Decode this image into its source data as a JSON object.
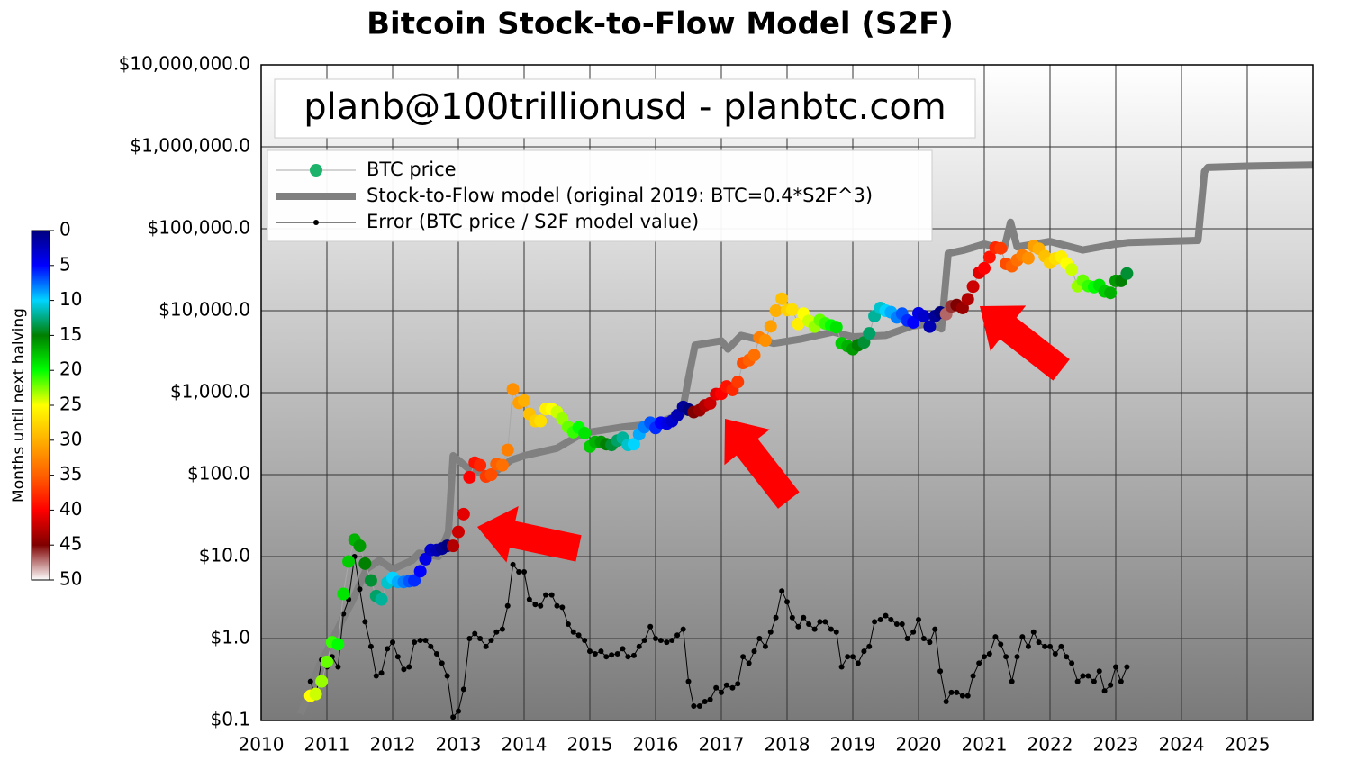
{
  "chart_data": {
    "type": "line",
    "title": "Bitcoin Stock-to-Flow Model (S2F)",
    "annotation": "planb@100trillionusd  -  planbtc.com",
    "ylog": true,
    "grid": true,
    "legend": "upper left",
    "xlim": [
      2010,
      2026
    ],
    "xticks": [
      2010,
      2011,
      2012,
      2013,
      2014,
      2015,
      2016,
      2017,
      2018,
      2019,
      2020,
      2021,
      2022,
      2023,
      2024,
      2025
    ],
    "ylim": [
      0.1,
      10000000
    ],
    "yticks": [
      {
        "value": 0.1,
        "label": "$0.1"
      },
      {
        "value": 1,
        "label": "$1.0"
      },
      {
        "value": 10,
        "label": "$10.0"
      },
      {
        "value": 100,
        "label": "$100.0"
      },
      {
        "value": 1000,
        "label": "$1,000.0"
      },
      {
        "value": 10000,
        "label": "$10,000.0"
      },
      {
        "value": 100000,
        "label": "$100,000.0"
      },
      {
        "value": 1000000,
        "label": "$1,000,000.0"
      },
      {
        "value": 10000000,
        "label": "$10,000,000.0"
      }
    ],
    "colorbar": {
      "label": "Months until next halving",
      "clim": [
        0,
        50
      ],
      "ticks": [
        0,
        5,
        10,
        15,
        20,
        25,
        30,
        35,
        40,
        45,
        50
      ],
      "stops": [
        {
          "value": 0,
          "color": "#00007f"
        },
        {
          "value": 5,
          "color": "#0000ff"
        },
        {
          "value": 10,
          "color": "#00d4ff"
        },
        {
          "value": 15,
          "color": "#007f00"
        },
        {
          "value": 20,
          "color": "#00ff00"
        },
        {
          "value": 25,
          "color": "#ffff00"
        },
        {
          "value": 30,
          "color": "#ffb000"
        },
        {
          "value": 35,
          "color": "#ff6000"
        },
        {
          "value": 40,
          "color": "#ff0000"
        },
        {
          "value": 45,
          "color": "#7f0000"
        },
        {
          "value": 50,
          "color": "#ffffff"
        }
      ]
    },
    "x": [
      2010.75,
      2010.83,
      2010.92,
      2011.0,
      2011.08,
      2011.17,
      2011.25,
      2011.33,
      2011.42,
      2011.5,
      2011.58,
      2011.67,
      2011.75,
      2011.83,
      2011.92,
      2012.0,
      2012.08,
      2012.17,
      2012.25,
      2012.33,
      2012.42,
      2012.5,
      2012.58,
      2012.67,
      2012.75,
      2012.83,
      2012.92,
      2013.0,
      2013.08,
      2013.17,
      2013.25,
      2013.33,
      2013.42,
      2013.5,
      2013.58,
      2013.67,
      2013.75,
      2013.83,
      2013.92,
      2014.0,
      2014.08,
      2014.17,
      2014.25,
      2014.33,
      2014.42,
      2014.5,
      2014.58,
      2014.67,
      2014.75,
      2014.83,
      2014.92,
      2015.0,
      2015.08,
      2015.17,
      2015.25,
      2015.33,
      2015.42,
      2015.5,
      2015.58,
      2015.67,
      2015.75,
      2015.83,
      2015.92,
      2016.0,
      2016.08,
      2016.17,
      2016.25,
      2016.33,
      2016.42,
      2016.5,
      2016.58,
      2016.67,
      2016.75,
      2016.83,
      2016.92,
      2017.0,
      2017.08,
      2017.17,
      2017.25,
      2017.33,
      2017.42,
      2017.5,
      2017.58,
      2017.67,
      2017.75,
      2017.83,
      2017.92,
      2018.0,
      2018.08,
      2018.17,
      2018.25,
      2018.33,
      2018.42,
      2018.5,
      2018.58,
      2018.67,
      2018.75,
      2018.83,
      2018.92,
      2019.0,
      2019.08,
      2019.17,
      2019.25,
      2019.33,
      2019.42,
      2019.5,
      2019.58,
      2019.67,
      2019.75,
      2019.83,
      2019.92,
      2020.0,
      2020.08,
      2020.17,
      2020.25,
      2020.33,
      2020.42,
      2020.5,
      2020.58,
      2020.67,
      2020.75,
      2020.83,
      2020.92,
      2021.0,
      2021.08,
      2021.17,
      2021.25,
      2021.33,
      2021.42,
      2021.5,
      2021.58,
      2021.67,
      2021.75,
      2021.83,
      2021.92,
      2022.0,
      2022.08,
      2022.17,
      2022.25,
      2022.33,
      2022.42,
      2022.5,
      2022.58,
      2022.67,
      2022.75,
      2022.83,
      2022.92,
      2023.0,
      2023.08,
      2023.17
    ],
    "series": [
      {
        "name": "BTC price",
        "color": "#1db36b",
        "line_color": "#a8a8a8",
        "values": [
          0.2,
          0.21,
          0.3,
          0.52,
          0.9,
          0.85,
          3.5,
          8.7,
          16,
          13.5,
          8.2,
          5.1,
          3.3,
          3.0,
          4.8,
          5.5,
          4.9,
          4.9,
          5.0,
          5.1,
          6.6,
          9.3,
          12,
          12,
          12.5,
          13.5,
          13.5,
          20,
          33,
          93,
          140,
          130,
          95,
          100,
          135,
          130,
          200,
          1100,
          750,
          800,
          550,
          450,
          450,
          630,
          630,
          580,
          480,
          380,
          330,
          375,
          320,
          220,
          250,
          250,
          235,
          230,
          260,
          280,
          230,
          235,
          310,
          380,
          430,
          370,
          430,
          420,
          450,
          530,
          670,
          620,
          580,
          610,
          700,
          740,
          960,
          970,
          1190,
          1080,
          1350,
          2300,
          2500,
          2870,
          4700,
          4340,
          6450,
          10000,
          14000,
          10200,
          10300,
          6900,
          9200,
          7500,
          6400,
          7700,
          7000,
          6600,
          6300,
          4000,
          3700,
          3400,
          3800,
          4100,
          5300,
          8600,
          10800,
          10000,
          9600,
          8300,
          9200,
          7600,
          7200,
          9300,
          8600,
          6400,
          8600,
          9500,
          9100,
          11300,
          11700,
          10800,
          13800,
          19700,
          29000,
          33000,
          45000,
          58800,
          57700,
          37300,
          35000,
          41500,
          47100,
          43800,
          61300,
          57000,
          46300,
          38500,
          43200,
          45500,
          37700,
          31800,
          19900,
          23300,
          20000,
          19400,
          20500,
          17200,
          16500,
          23100,
          23100,
          28400
        ],
        "months": [
          25,
          24,
          23,
          22,
          21,
          20,
          19,
          18,
          17,
          16,
          15,
          14,
          13,
          12,
          11,
          10,
          9,
          8,
          7,
          6,
          5,
          4,
          3,
          2,
          1,
          0,
          43,
          42,
          41,
          40,
          39,
          38,
          37,
          36,
          35,
          34,
          33,
          32,
          31,
          30,
          29,
          28,
          27,
          26,
          25,
          24,
          23,
          22,
          21,
          20,
          19,
          18,
          17,
          16,
          15,
          14,
          13,
          12,
          11,
          10,
          9,
          8,
          7,
          6,
          5,
          4,
          3,
          2,
          1,
          0,
          45,
          44,
          43,
          42,
          41,
          40,
          39,
          38,
          37,
          36,
          35,
          34,
          33,
          32,
          31,
          30,
          29,
          28,
          27,
          26,
          25,
          24,
          23,
          22,
          21,
          20,
          19,
          18,
          17,
          16,
          15,
          14,
          13,
          12,
          11,
          10,
          9,
          8,
          7,
          6,
          5,
          4,
          3,
          2,
          1,
          0,
          47,
          46,
          45,
          44,
          43,
          42,
          41,
          40,
          39,
          38,
          37,
          36,
          35,
          34,
          33,
          32,
          31,
          30,
          29,
          28,
          27,
          26,
          25,
          24,
          23,
          22,
          21,
          20,
          19,
          18,
          17,
          16,
          15,
          14
        ]
      },
      {
        "name": "Stock-to-Flow model (original 2019:  BTC=0.4*S2F^3)",
        "color": "#808080",
        "x": [
          2010.6,
          2010.9,
          2011.0,
          2011.2,
          2011.4,
          2011.6,
          2011.8,
          2012.0,
          2012.3,
          2012.4,
          2012.7,
          2012.85,
          2012.92,
          2013.2,
          2013.5,
          2013.8,
          2014.0,
          2014.5,
          2014.8,
          2015.0,
          2015.5,
          2016.0,
          2016.4,
          2016.5,
          2016.6,
          2017.0,
          2017.1,
          2017.3,
          2017.8,
          2018.2,
          2018.7,
          2019.0,
          2019.5,
          2019.9,
          2020.2,
          2020.35,
          2020.45,
          2020.7,
          2021.0,
          2021.3,
          2021.4,
          2021.5,
          2022.0,
          2022.5,
          2023.0,
          2023.2,
          2024.25,
          2024.35,
          2024.4,
          2025.0,
          2026.0
        ],
        "values": [
          0.12,
          0.5,
          0.7,
          1.5,
          3,
          7,
          9,
          7,
          9,
          11,
          10,
          20,
          170,
          110,
          100,
          150,
          170,
          210,
          290,
          330,
          380,
          420,
          550,
          1500,
          3800,
          4300,
          3400,
          5000,
          4000,
          4500,
          5500,
          4800,
          5000,
          6500,
          7000,
          6000,
          50000,
          55000,
          65000,
          56000,
          120000,
          60000,
          70000,
          55000,
          65000,
          68000,
          72000,
          500000,
          560000,
          580000,
          600000
        ]
      },
      {
        "name": "Error (BTC price / S2F model value)",
        "color": "#000000",
        "values": [
          0.3,
          0.19,
          0.55,
          0.45,
          0.6,
          0.45,
          2.0,
          3.0,
          10,
          4.0,
          1.6,
          0.8,
          0.35,
          0.38,
          0.75,
          0.9,
          0.6,
          0.42,
          0.45,
          0.9,
          0.95,
          0.95,
          0.8,
          0.65,
          0.5,
          0.35,
          0.11,
          0.13,
          0.24,
          1.0,
          1.15,
          1.0,
          0.8,
          0.95,
          1.2,
          1.3,
          2.5,
          8.0,
          6.5,
          6.5,
          3.0,
          2.6,
          2.5,
          3.4,
          3.4,
          2.5,
          2.4,
          1.5,
          1.2,
          1.1,
          0.95,
          0.7,
          0.65,
          0.7,
          0.6,
          0.63,
          0.65,
          0.75,
          0.6,
          0.62,
          0.8,
          0.95,
          1.4,
          1.0,
          0.95,
          0.9,
          0.95,
          1.1,
          1.3,
          0.3,
          0.15,
          0.15,
          0.17,
          0.18,
          0.25,
          0.22,
          0.27,
          0.25,
          0.28,
          0.6,
          0.5,
          0.7,
          1.0,
          0.8,
          1.2,
          1.8,
          3.8,
          2.8,
          1.8,
          1.4,
          1.8,
          1.5,
          1.3,
          1.6,
          1.6,
          1.3,
          1.2,
          0.45,
          0.6,
          0.6,
          0.5,
          0.7,
          0.8,
          1.6,
          1.7,
          1.9,
          1.7,
          1.5,
          1.5,
          1.0,
          1.2,
          1.7,
          1.0,
          0.9,
          1.3,
          0.4,
          0.17,
          0.22,
          0.22,
          0.2,
          0.2,
          0.35,
          0.5,
          0.6,
          0.65,
          1.05,
          0.85,
          0.6,
          0.3,
          0.6,
          1.05,
          0.8,
          1.2,
          0.9,
          0.8,
          0.8,
          0.65,
          0.8,
          0.6,
          0.5,
          0.3,
          0.35,
          0.35,
          0.3,
          0.4,
          0.23,
          0.27,
          0.45,
          0.3,
          0.45
        ]
      }
    ]
  }
}
